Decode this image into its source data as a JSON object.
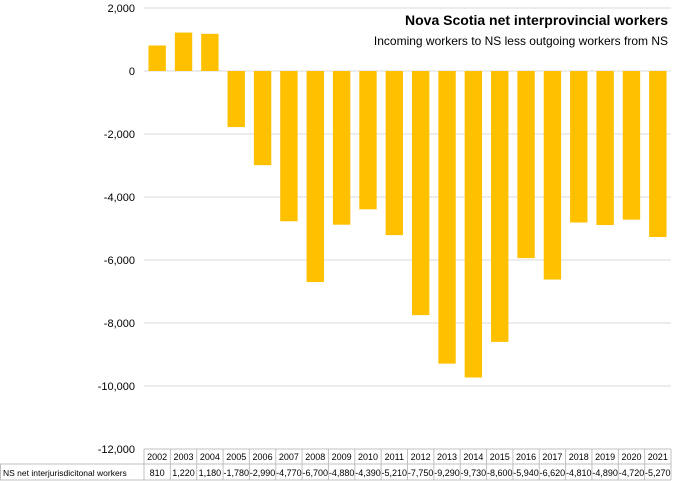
{
  "chart_data": {
    "type": "bar",
    "title": "Nova Scotia net interprovincial  workers",
    "subtitle": "Incoming workers to NS less outgoing workers from NS",
    "categories": [
      "2002",
      "2003",
      "2004",
      "2005",
      "2006",
      "2007",
      "2008",
      "2009",
      "2010",
      "2011",
      "2012",
      "2013",
      "2014",
      "2015",
      "2016",
      "2017",
      "2018",
      "2019",
      "2020",
      "2021"
    ],
    "series": [
      {
        "name": "NS net interjurisdicitonal workers",
        "values": [
          810,
          1220,
          1180,
          -1780,
          -2990,
          -4770,
          -6700,
          -4880,
          -4390,
          -5210,
          -7750,
          -9290,
          -9730,
          -8600,
          -5940,
          -6620,
          -4810,
          -4890,
          -4720,
          -5270
        ],
        "labels": [
          "810",
          "1,220",
          "1,180",
          "-1,780",
          "-2,990",
          "-4,770",
          "-6,700",
          "-4,880",
          "-4,390",
          "-5,210",
          "-7,750",
          "-9,290",
          "-9,730",
          "-8,600",
          "-5,940",
          "-6,620",
          "-4,810",
          "-4,890",
          "-4,720",
          "-5,270"
        ]
      }
    ],
    "ylim": [
      -12000,
      2000
    ],
    "yticks": [
      2000,
      0,
      -2000,
      -4000,
      -6000,
      -8000,
      -10000,
      -12000
    ],
    "ytick_labels": [
      "2,000",
      "0",
      "-2,000",
      "-4,000",
      "-6,000",
      "-8,000",
      "-10,000",
      "-12,000"
    ],
    "grid": true,
    "legend": "data-table-below",
    "xlabel": "",
    "ylabel": "",
    "colors": {
      "bar": "#ffc000",
      "grid": "#d9d9d9",
      "table_border": "#c0c0c0"
    }
  }
}
